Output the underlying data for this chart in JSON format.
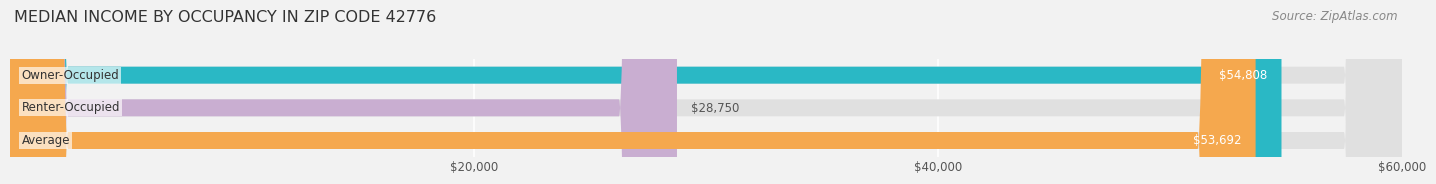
{
  "title": "MEDIAN INCOME BY OCCUPANCY IN ZIP CODE 42776",
  "source_text": "Source: ZipAtlas.com",
  "categories": [
    "Owner-Occupied",
    "Renter-Occupied",
    "Average"
  ],
  "values": [
    54808,
    28750,
    53692
  ],
  "bar_colors": [
    "#2ab8c5",
    "#c9aed1",
    "#f5a84e"
  ],
  "bar_label_colors": [
    "#ffffff",
    "#555555",
    "#ffffff"
  ],
  "xlim": [
    0,
    60000
  ],
  "xticks": [
    20000,
    40000,
    60000
  ],
  "xtick_labels": [
    "$20,000",
    "$40,000",
    "$60,000"
  ],
  "background_color": "#f2f2f2",
  "bar_bg_color": "#e0e0e0",
  "title_fontsize": 11.5,
  "source_fontsize": 8.5,
  "label_fontsize": 8.5,
  "tick_fontsize": 8.5,
  "bar_height": 0.52,
  "value_label_threshold": 40000
}
